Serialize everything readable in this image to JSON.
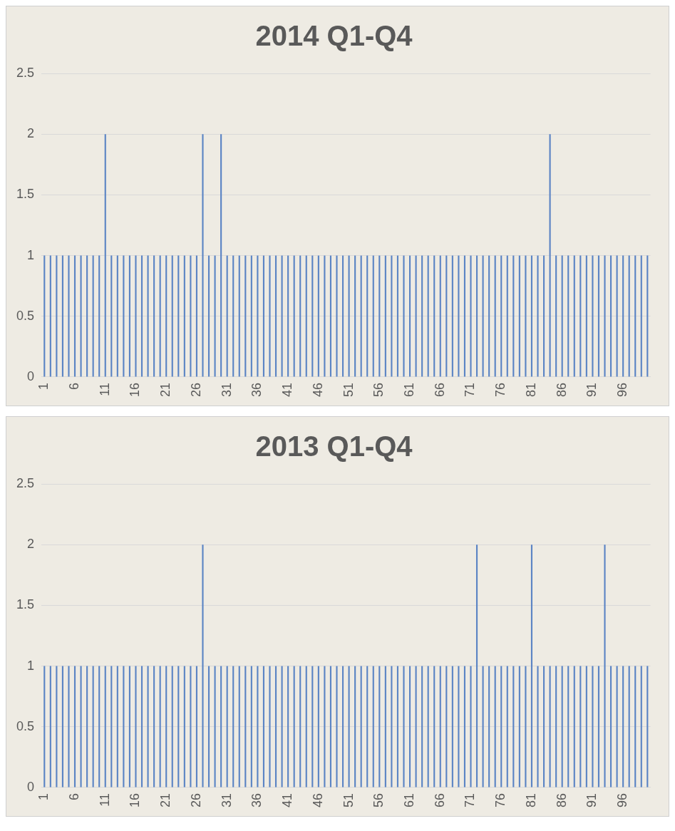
{
  "chart_data": [
    {
      "type": "bar",
      "title": "2014 Q1-Q4",
      "categories": [
        "1",
        null,
        null,
        null,
        null,
        "6",
        null,
        null,
        null,
        null,
        "11",
        null,
        null,
        null,
        null,
        "16",
        null,
        null,
        null,
        null,
        "21",
        null,
        null,
        null,
        null,
        "26",
        null,
        null,
        null,
        null,
        "31",
        null,
        null,
        null,
        null,
        "36",
        null,
        null,
        null,
        null,
        "41",
        null,
        null,
        null,
        null,
        "46",
        null,
        null,
        null,
        null,
        "51",
        null,
        null,
        null,
        null,
        "56",
        null,
        null,
        null,
        null,
        "61",
        null,
        null,
        null,
        null,
        "66",
        null,
        null,
        null,
        null,
        "71",
        null,
        null,
        null,
        null,
        "76",
        null,
        null,
        null,
        null,
        "81",
        null,
        null,
        null,
        null,
        "86",
        null,
        null,
        null,
        null,
        "91",
        null,
        null,
        null,
        null,
        "96",
        null,
        null,
        null,
        null
      ],
      "values": [
        1,
        1,
        1,
        1,
        1,
        1,
        1,
        1,
        1,
        1,
        2,
        1,
        1,
        1,
        1,
        1,
        1,
        1,
        1,
        1,
        1,
        1,
        1,
        1,
        1,
        1,
        2,
        1,
        1,
        2,
        1,
        1,
        1,
        1,
        1,
        1,
        1,
        1,
        1,
        1,
        1,
        1,
        1,
        1,
        1,
        1,
        1,
        1,
        1,
        1,
        1,
        1,
        1,
        1,
        1,
        1,
        1,
        1,
        1,
        1,
        1,
        1,
        1,
        1,
        1,
        1,
        1,
        1,
        1,
        1,
        1,
        1,
        1,
        1,
        1,
        1,
        1,
        1,
        1,
        1,
        1,
        1,
        1,
        2,
        1,
        1,
        1,
        1,
        1,
        1,
        1,
        1,
        1,
        1,
        1,
        1,
        1,
        1,
        1,
        1
      ],
      "color": "#5b84c4",
      "ylim": [
        0,
        2.5
      ],
      "yticks": [
        0,
        0.5,
        1,
        1.5,
        2,
        2.5
      ],
      "grid": "y",
      "legend": false
    },
    {
      "type": "bar",
      "title": "2013 Q1-Q4",
      "categories": [
        "1",
        null,
        null,
        null,
        null,
        "6",
        null,
        null,
        null,
        null,
        "11",
        null,
        null,
        null,
        null,
        "16",
        null,
        null,
        null,
        null,
        "21",
        null,
        null,
        null,
        null,
        "26",
        null,
        null,
        null,
        null,
        "31",
        null,
        null,
        null,
        null,
        "36",
        null,
        null,
        null,
        null,
        "41",
        null,
        null,
        null,
        null,
        "46",
        null,
        null,
        null,
        null,
        "51",
        null,
        null,
        null,
        null,
        "56",
        null,
        null,
        null,
        null,
        "61",
        null,
        null,
        null,
        null,
        "66",
        null,
        null,
        null,
        null,
        "71",
        null,
        null,
        null,
        null,
        "76",
        null,
        null,
        null,
        null,
        "81",
        null,
        null,
        null,
        null,
        "86",
        null,
        null,
        null,
        null,
        "91",
        null,
        null,
        null,
        null,
        "96",
        null,
        null,
        null,
        null
      ],
      "values": [
        1,
        1,
        1,
        1,
        1,
        1,
        1,
        1,
        1,
        1,
        1,
        1,
        1,
        1,
        1,
        1,
        1,
        1,
        1,
        1,
        1,
        1,
        1,
        1,
        1,
        1,
        2,
        1,
        1,
        1,
        1,
        1,
        1,
        1,
        1,
        1,
        1,
        1,
        1,
        1,
        1,
        1,
        1,
        1,
        1,
        1,
        1,
        1,
        1,
        1,
        1,
        1,
        1,
        1,
        1,
        1,
        1,
        1,
        1,
        1,
        1,
        1,
        1,
        1,
        1,
        1,
        1,
        1,
        1,
        1,
        1,
        2,
        1,
        1,
        1,
        1,
        1,
        1,
        1,
        1,
        2,
        1,
        1,
        1,
        1,
        1,
        1,
        1,
        1,
        1,
        1,
        1,
        2,
        1,
        1,
        1,
        1,
        1,
        1,
        1
      ],
      "color": "#5b84c4",
      "ylim": [
        0,
        2.5
      ],
      "yticks": [
        0,
        0.5,
        1,
        1.5,
        2,
        2.5
      ],
      "grid": "y",
      "legend": false
    }
  ]
}
